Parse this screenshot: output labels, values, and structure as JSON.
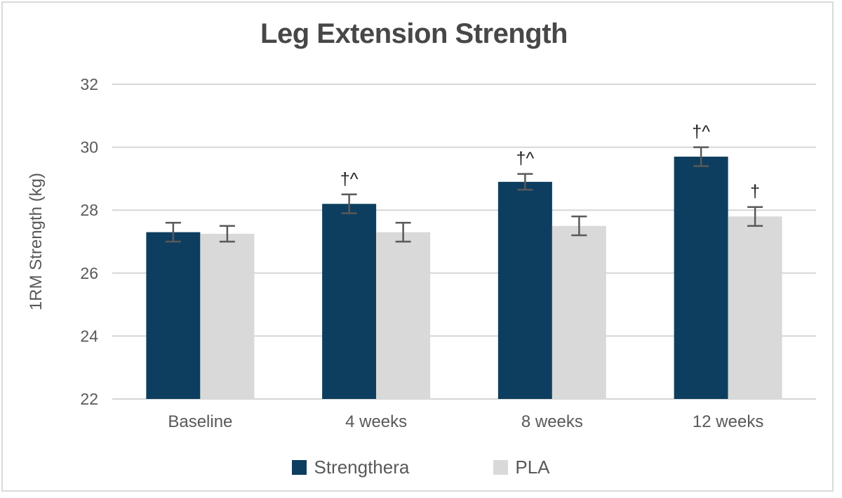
{
  "chart_data": {
    "type": "bar",
    "title": "Leg Extension Strength",
    "ylabel": "1RM Strength (kg)",
    "xlabel": "",
    "categories": [
      "Baseline",
      "4 weeks",
      "8 weeks",
      "12 weeks"
    ],
    "series": [
      {
        "name": "Strengthera",
        "color": "#0d3e5f",
        "values": [
          27.3,
          28.2,
          28.9,
          29.7
        ],
        "errors": [
          0.3,
          0.3,
          0.25,
          0.3
        ],
        "annotations": [
          "",
          "†^",
          "†^",
          "†^"
        ]
      },
      {
        "name": "PLA",
        "color": "#d9d9d9",
        "values": [
          27.25,
          27.3,
          27.5,
          27.8
        ],
        "errors": [
          0.25,
          0.3,
          0.3,
          0.3
        ],
        "annotations": [
          "",
          "",
          "",
          "†"
        ]
      }
    ],
    "ylim": [
      22,
      32
    ],
    "yticks": [
      22,
      24,
      26,
      28,
      30,
      32
    ],
    "grid": true,
    "legend_position": "bottom",
    "gridline_color": "#d6d6d6",
    "error_bar_color": "#595959",
    "annotation_color": "#1f1f1f"
  }
}
